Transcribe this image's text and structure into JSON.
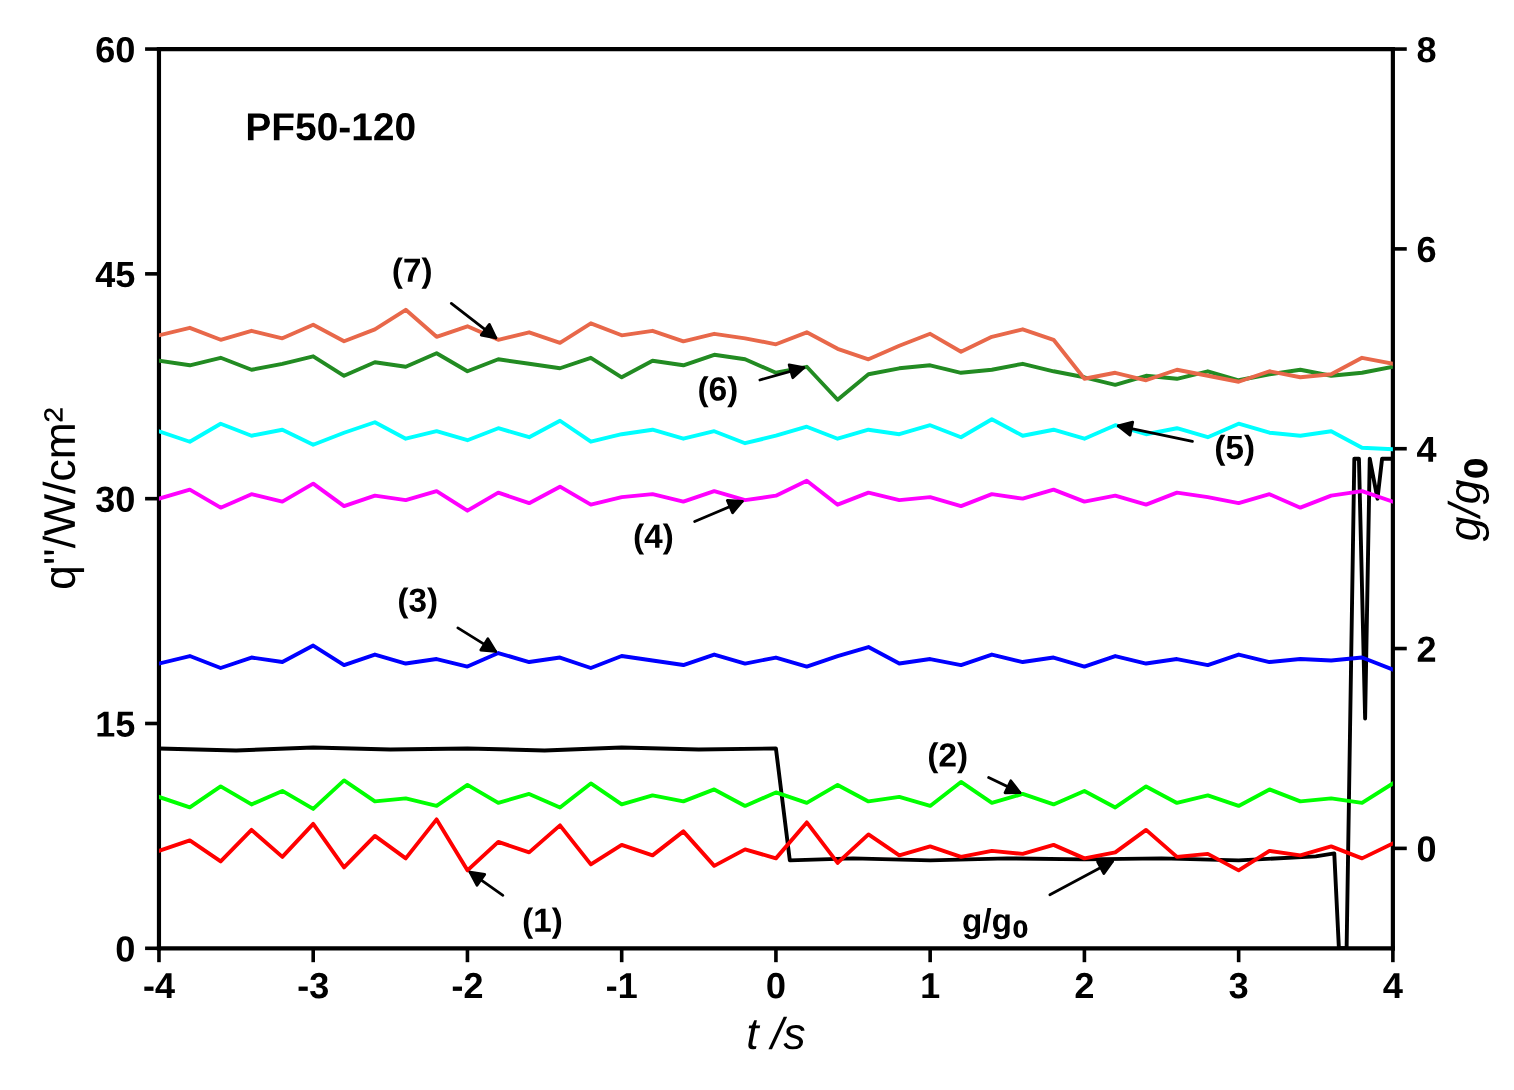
{
  "chart_data": {
    "type": "line",
    "xlabel": "t /s",
    "ylabel": "q''/W/cm²",
    "y2label": "g/g$_{0}$",
    "xlim": [
      -4,
      4
    ],
    "xticks": [
      -4,
      -3,
      -2,
      -1,
      0,
      1,
      2,
      3,
      4
    ],
    "ylim": [
      0,
      60
    ],
    "yticks": [
      0,
      15,
      30,
      45,
      60
    ],
    "y2lim": [
      -1,
      8
    ],
    "y2ticks": [
      0,
      2,
      4,
      6,
      8
    ],
    "grid": false,
    "marker": "none",
    "line_style": "solid",
    "x": [
      -4,
      -3.8,
      -3.6,
      -3.4,
      -3.2,
      -3,
      -2.8,
      -2.6,
      -2.4,
      -2.2,
      -2,
      -1.8,
      -1.6,
      -1.4,
      -1.2,
      -1,
      -0.8,
      -0.6,
      -0.4,
      -0.2,
      0,
      0.2,
      0.4,
      0.6,
      0.8,
      1,
      1.2,
      1.4,
      1.6,
      1.8,
      2,
      2.2,
      2.4,
      2.6,
      2.8,
      3,
      3.2,
      3.4,
      3.6,
      3.8,
      4
    ],
    "series": [
      {
        "color": "#ff0000",
        "values": [
          6.5,
          7.2,
          5.8,
          7.9,
          6.1,
          8.3,
          5.4,
          7.5,
          6.0,
          8.6,
          5.2,
          7.1,
          6.4,
          8.2,
          5.6,
          6.9,
          6.2,
          7.8,
          5.5,
          6.6,
          6.0,
          8.4,
          5.7,
          7.6,
          6.2,
          6.8,
          6.1,
          6.5,
          6.3,
          6.9,
          6.0,
          6.4,
          7.9,
          6.1,
          6.3,
          5.2,
          6.5,
          6.2,
          6.8,
          6.0,
          7.0
        ]
      },
      {
        "color": "#00ff00",
        "values": [
          10.1,
          9.4,
          10.8,
          9.6,
          10.5,
          9.3,
          11.2,
          9.8,
          10.0,
          9.5,
          10.9,
          9.7,
          10.3,
          9.4,
          11.0,
          9.6,
          10.2,
          9.8,
          10.6,
          9.5,
          10.4,
          9.7,
          10.9,
          9.8,
          10.1,
          9.5,
          11.1,
          9.7,
          10.3,
          9.6,
          10.5,
          9.4,
          10.8,
          9.7,
          10.2,
          9.5,
          10.6,
          9.8,
          10.0,
          9.7,
          11.0
        ]
      },
      {
        "color": "#0000ff",
        "values": [
          19.0,
          19.5,
          18.7,
          19.4,
          19.1,
          20.2,
          18.9,
          19.6,
          19.0,
          19.3,
          18.8,
          19.7,
          19.1,
          19.4,
          18.7,
          19.5,
          19.2,
          18.9,
          19.6,
          19.0,
          19.4,
          18.8,
          19.5,
          20.1,
          19.0,
          19.3,
          18.9,
          19.6,
          19.1,
          19.4,
          18.8,
          19.5,
          19.0,
          19.3,
          18.9,
          19.6,
          19.1,
          19.3,
          19.2,
          19.4,
          18.6
        ]
      },
      {
        "color": "#ff00ff",
        "values": [
          30.0,
          30.6,
          29.4,
          30.3,
          29.8,
          31.0,
          29.5,
          30.2,
          29.9,
          30.5,
          29.2,
          30.4,
          29.7,
          30.8,
          29.6,
          30.1,
          30.3,
          29.8,
          30.5,
          29.9,
          30.2,
          31.2,
          29.6,
          30.4,
          29.9,
          30.1,
          29.5,
          30.3,
          30.0,
          30.6,
          29.8,
          30.2,
          29.6,
          30.4,
          30.1,
          29.7,
          30.3,
          29.4,
          30.2,
          30.5,
          29.8
        ]
      },
      {
        "color": "#00ffff",
        "values": [
          34.5,
          33.8,
          35.0,
          34.2,
          34.6,
          33.6,
          34.4,
          35.1,
          34.0,
          34.5,
          33.9,
          34.7,
          34.1,
          35.2,
          33.8,
          34.3,
          34.6,
          34.0,
          34.5,
          33.7,
          34.2,
          34.8,
          34.0,
          34.6,
          34.3,
          34.9,
          34.1,
          35.3,
          34.2,
          34.6,
          34.0,
          34.9,
          34.3,
          34.7,
          34.1,
          35.0,
          34.4,
          34.2,
          34.5,
          33.4,
          33.3
        ]
      },
      {
        "color": "#228b22",
        "values": [
          39.2,
          38.9,
          39.4,
          38.6,
          39.0,
          39.5,
          38.2,
          39.1,
          38.8,
          39.7,
          38.5,
          39.3,
          39.0,
          38.7,
          39.4,
          38.1,
          39.2,
          38.9,
          39.6,
          39.3,
          38.4,
          38.8,
          36.6,
          38.3,
          38.7,
          38.9,
          38.4,
          38.6,
          39.0,
          38.5,
          38.1,
          37.6,
          38.2,
          38.0,
          38.5,
          37.9,
          38.3,
          38.6,
          38.2,
          38.4,
          38.8
        ]
      },
      {
        "color": "#e8684a",
        "values": [
          40.9,
          41.4,
          40.6,
          41.2,
          40.7,
          41.6,
          40.5,
          41.3,
          42.6,
          40.8,
          41.5,
          40.6,
          41.1,
          40.4,
          41.7,
          40.9,
          41.2,
          40.5,
          41.0,
          40.7,
          40.3,
          41.1,
          40.0,
          39.3,
          40.2,
          41.0,
          39.8,
          40.8,
          41.3,
          40.6,
          38.0,
          38.4,
          37.9,
          38.6,
          38.2,
          37.8,
          38.5,
          38.1,
          38.3,
          39.4,
          39.0
        ]
      },
      {
        "color": "#000000",
        "axis": "y2",
        "x": [
          -4,
          -3.5,
          -3,
          -2.5,
          -2,
          -1.5,
          -1,
          -0.5,
          0,
          0.09,
          0.5,
          1,
          1.5,
          2,
          2.5,
          3,
          3.5,
          3.62,
          3.65,
          3.7,
          3.75,
          3.78,
          3.82,
          3.85,
          3.9,
          3.93,
          4
        ],
        "values": [
          1.0,
          0.98,
          1.01,
          0.99,
          1.0,
          0.98,
          1.01,
          0.99,
          1.0,
          -0.12,
          -0.1,
          -0.12,
          -0.1,
          -0.11,
          -0.1,
          -0.12,
          -0.08,
          -0.05,
          -1.0,
          -1.0,
          3.9,
          3.9,
          1.3,
          3.9,
          3.5,
          3.9,
          3.9
        ]
      }
    ],
    "annotations": [
      {
        "text": "(1)",
        "x": -2,
        "y": 5.2
      },
      {
        "text": "(2)",
        "x": 1.6,
        "y": 10.3
      },
      {
        "text": "(3)",
        "x": -1.8,
        "y": 19.7
      },
      {
        "text": "(4)",
        "x": -0.2,
        "y": 29.9
      },
      {
        "text": "(5)",
        "x": 2.2,
        "y": 34.9
      },
      {
        "text": "(6)",
        "x": 0.2,
        "y": 38.8
      },
      {
        "text": "(7)",
        "x": -1.8,
        "y": 40.6
      },
      {
        "text": "g/g$_{0}$",
        "x": 2.2,
        "y": 5.9
      },
      "PF50-120"
    ]
  }
}
